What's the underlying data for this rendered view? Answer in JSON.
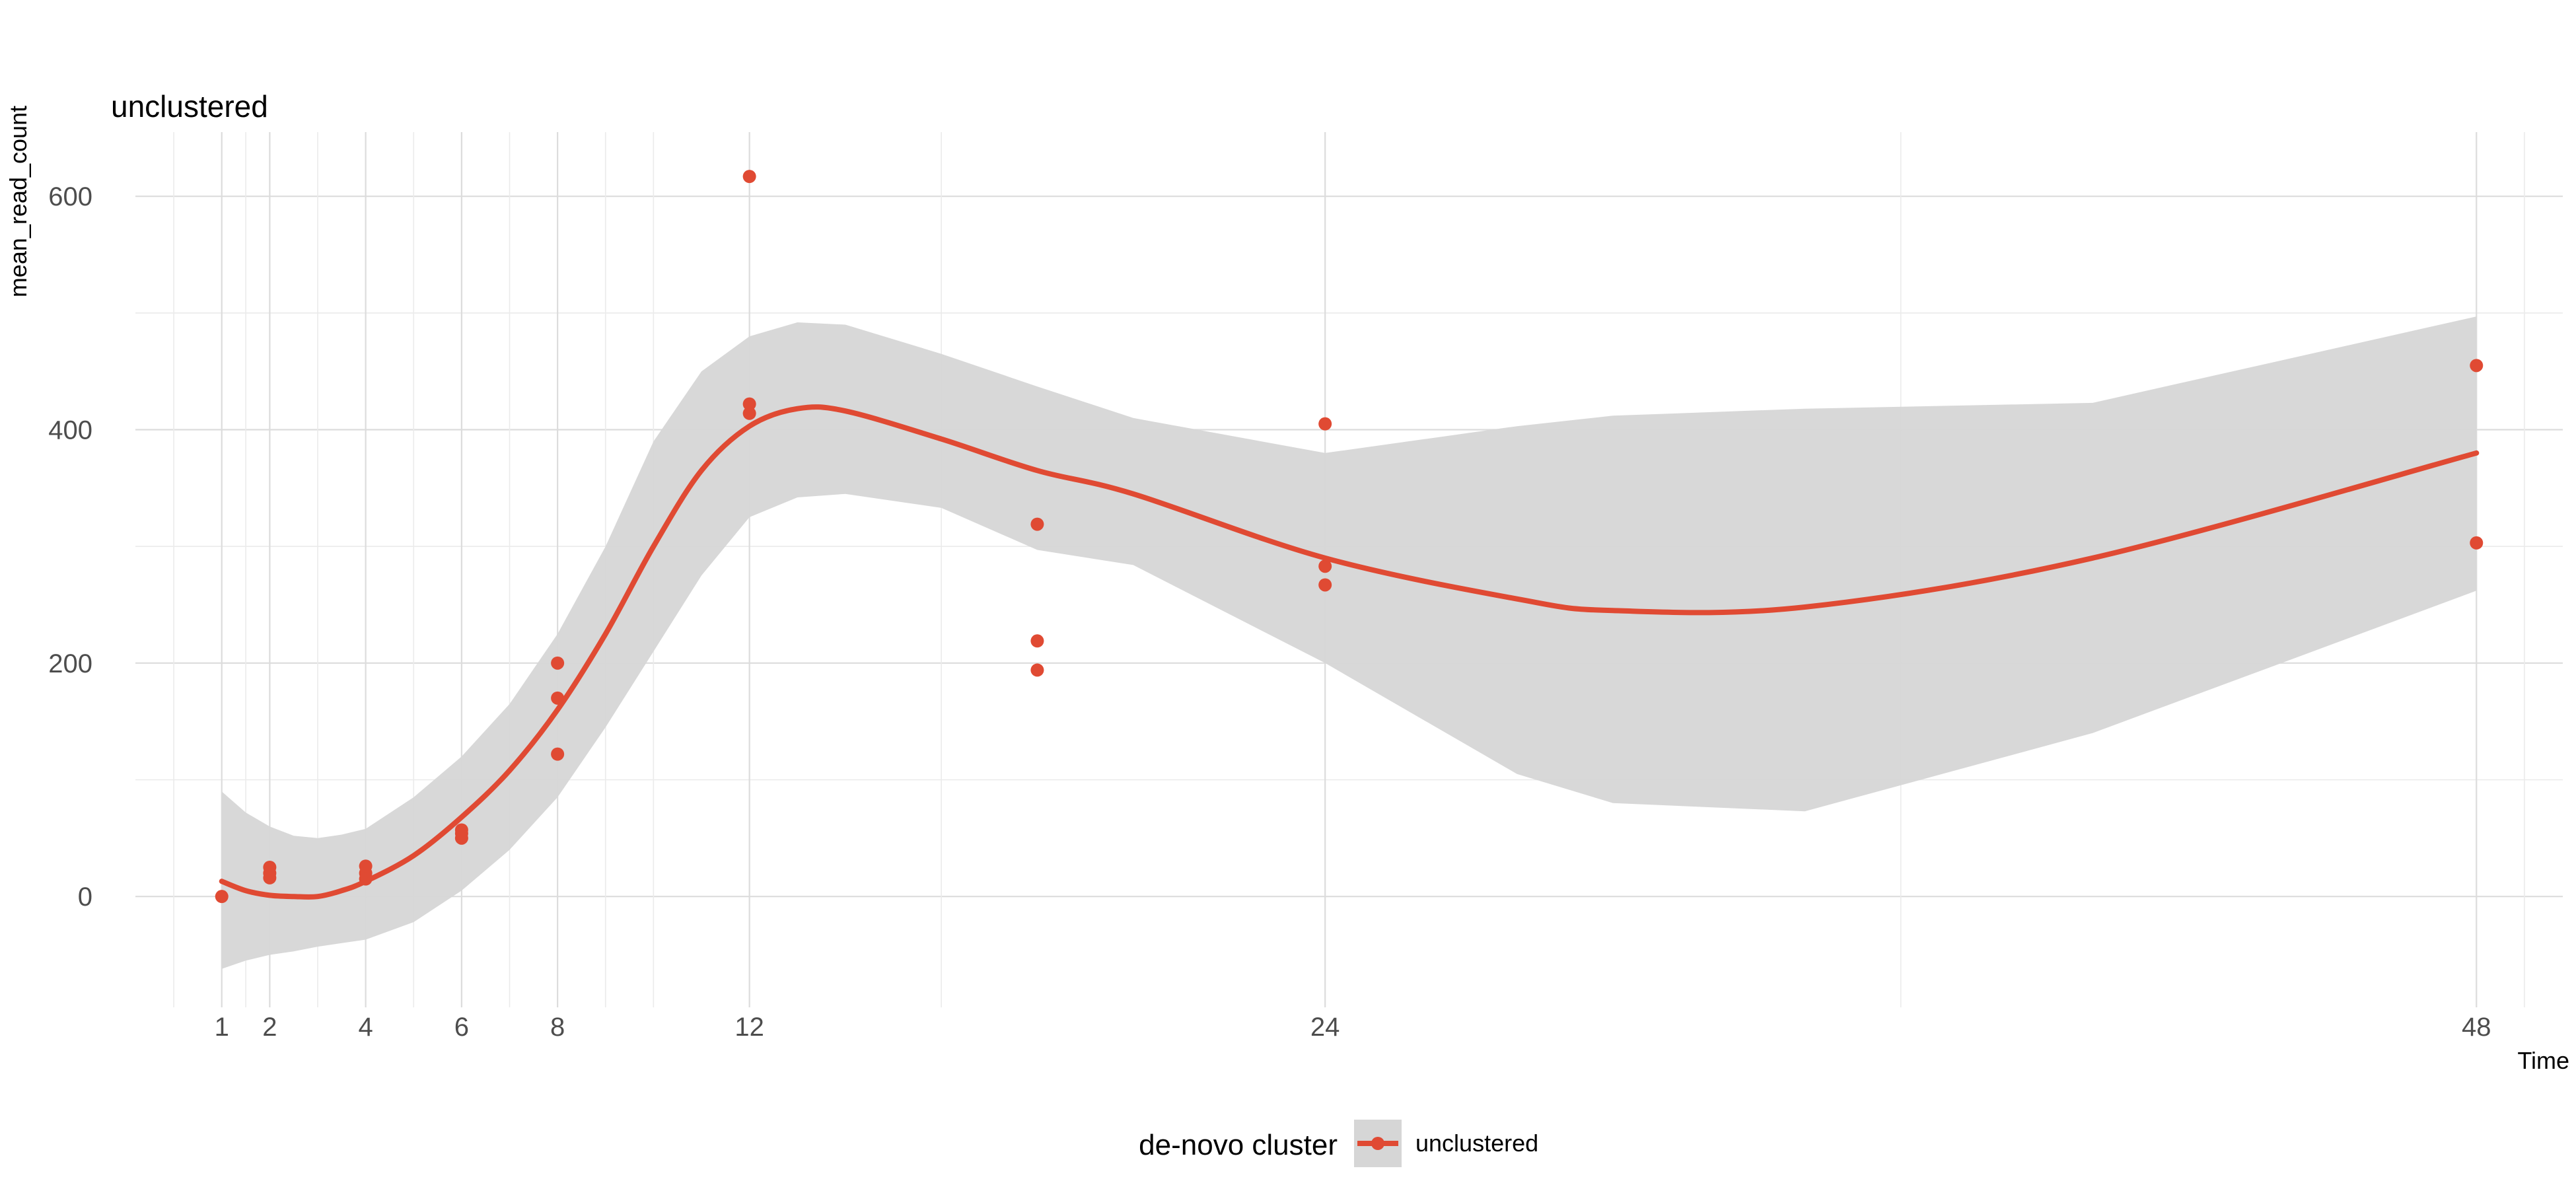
{
  "chart_data": {
    "type": "scatter",
    "title": "unclustered",
    "xlabel": "Time",
    "ylabel": "mean_read_count",
    "xlim": [
      -0.8,
      49.8
    ],
    "ylim": [
      -95,
      655
    ],
    "x_ticks": [
      1,
      2,
      4,
      6,
      8,
      12,
      24,
      48
    ],
    "x_minor_grid": [
      0,
      1.5,
      3,
      5,
      7,
      9,
      10,
      16,
      36,
      49
    ],
    "y_ticks": [
      0,
      200,
      400,
      600
    ],
    "y_minor_grid": [
      100,
      300,
      500
    ],
    "grid": true,
    "legend": {
      "title": "de-novo cluster",
      "position": "bottom"
    },
    "series": [
      {
        "name": "unclustered",
        "color": "#E04A33",
        "points": [
          {
            "x": 1,
            "y": 0
          },
          {
            "x": 2,
            "y": 25
          },
          {
            "x": 2,
            "y": 20
          },
          {
            "x": 2,
            "y": 16
          },
          {
            "x": 4,
            "y": 26
          },
          {
            "x": 4,
            "y": 20
          },
          {
            "x": 4,
            "y": 15
          },
          {
            "x": 6,
            "y": 57
          },
          {
            "x": 6,
            "y": 54
          },
          {
            "x": 6,
            "y": 50
          },
          {
            "x": 8,
            "y": 200
          },
          {
            "x": 8,
            "y": 170
          },
          {
            "x": 8,
            "y": 122
          },
          {
            "x": 12,
            "y": 617
          },
          {
            "x": 12,
            "y": 422
          },
          {
            "x": 12,
            "y": 414
          },
          {
            "x": 18,
            "y": 319
          },
          {
            "x": 18,
            "y": 219
          },
          {
            "x": 18,
            "y": 194
          },
          {
            "x": 24,
            "y": 405
          },
          {
            "x": 24,
            "y": 283
          },
          {
            "x": 24,
            "y": 267
          },
          {
            "x": 48,
            "y": 455
          },
          {
            "x": 48,
            "y": 303
          }
        ],
        "smooth": {
          "x": [
            1,
            1.5,
            2,
            2.5,
            3,
            3.5,
            4,
            5,
            6,
            7,
            8,
            9,
            10,
            11,
            12,
            13,
            14,
            16,
            18,
            20,
            24,
            28,
            30,
            34,
            40,
            48
          ],
          "fit": [
            13,
            5,
            1,
            0,
            0,
            5,
            13,
            35,
            68,
            108,
            160,
            225,
            300,
            365,
            403,
            418,
            416,
            392,
            365,
            345,
            290,
            255,
            245,
            248,
            290,
            380
          ],
          "lower": [
            -62,
            -55,
            -50,
            -47,
            -43,
            -40,
            -37,
            -22,
            5,
            40,
            85,
            145,
            210,
            275,
            325,
            342,
            345,
            333,
            297,
            284,
            200,
            105,
            80,
            73,
            140,
            262
          ],
          "upper": [
            90,
            72,
            60,
            52,
            50,
            53,
            58,
            85,
            120,
            165,
            225,
            300,
            390,
            450,
            480,
            492,
            490,
            465,
            437,
            410,
            380,
            403,
            412,
            418,
            423,
            497
          ]
        }
      }
    ]
  }
}
